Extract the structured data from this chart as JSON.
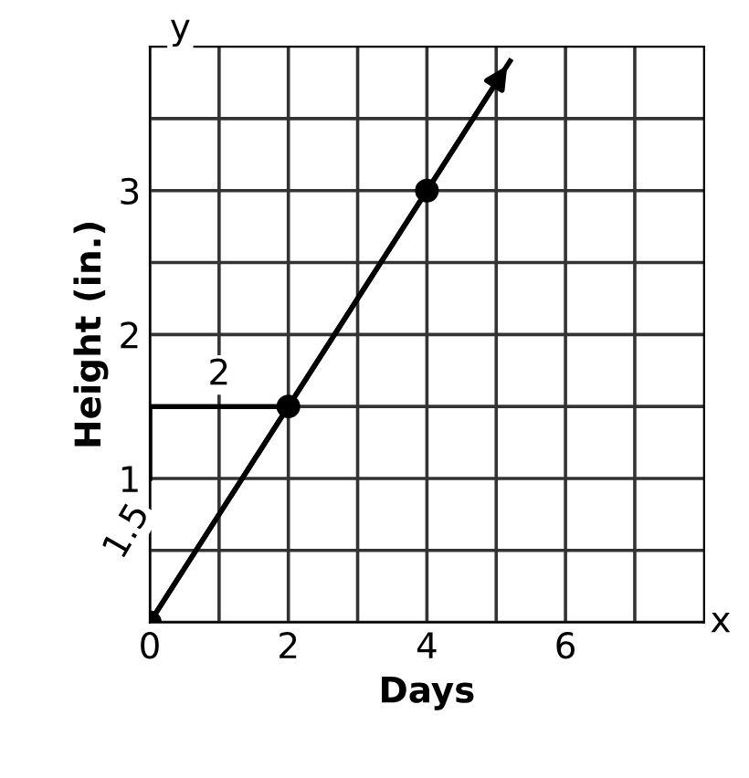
{
  "chart_data": {
    "type": "line",
    "xlabel": "Days",
    "ylabel": "Height (in.)",
    "xlim": [
      0,
      8
    ],
    "ylim": [
      0,
      4
    ],
    "xticks": [
      0,
      {
        "value": 1,
        "label": null
      },
      2,
      {
        "value": 3,
        "label": null
      },
      4,
      {
        "value": 5,
        "label": null
      },
      6,
      {
        "value": 7,
        "label": null
      }
    ],
    "yticks": [
      {
        "value": 0,
        "label": null
      },
      {
        "value": 0.5,
        "label": null
      },
      1,
      {
        "value": 1.5,
        "label": null
      },
      2,
      {
        "value": 2.5,
        "label": null
      },
      3,
      {
        "value": 3.5,
        "label": null
      }
    ],
    "grid": true,
    "series": [
      {
        "color": "#000000",
        "x": [
          0,
          5.2
        ],
        "values": [
          0,
          3.9
        ],
        "marker": "none"
      },
      {
        "type": "scatter",
        "color": "#000000",
        "x": [
          0,
          2,
          4
        ],
        "values": [
          0,
          1.5,
          3
        ],
        "marker": "circle"
      },
      {
        "type": "line",
        "color": "#000000",
        "x": [
          0,
          0,
          2
        ],
        "values": [
          1.0,
          1.5,
          1.5
        ],
        "marker": "none"
      }
    ],
    "annotations": [
      "2",
      "1.5",
      "x",
      "y"
    ]
  }
}
